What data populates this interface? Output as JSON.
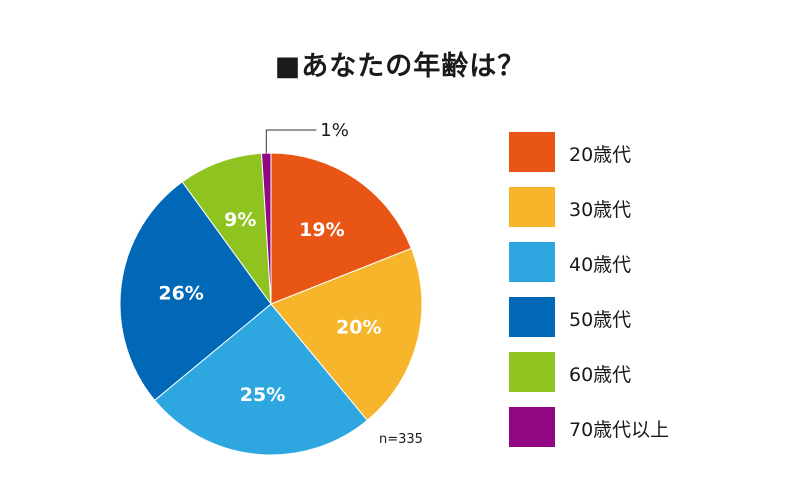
{
  "chart_data": {
    "type": "pie",
    "title": "■あなたの年齢は？",
    "note": "n=335",
    "categories": [
      "20歳代",
      "30歳代",
      "40歳代",
      "50歳代",
      "60歳代",
      "70歳代以上"
    ],
    "values": [
      19,
      20,
      25,
      26,
      9,
      1
    ],
    "value_labels": [
      "19%",
      "20%",
      "25%",
      "26%",
      "9%",
      "1%"
    ],
    "colors": [
      "#e95514",
      "#f7b52c",
      "#2ea7e0",
      "#0068b7",
      "#8fc31f",
      "#920783"
    ],
    "start_angle": "12 o'clock",
    "direction": "clockwise",
    "legend_position": "right"
  }
}
